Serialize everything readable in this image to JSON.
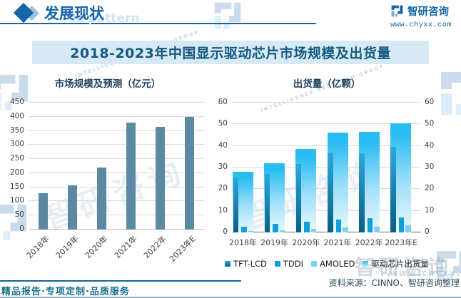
{
  "header": {
    "title": "发展现状",
    "watermark": "se pattern",
    "logo_text": "智研咨询",
    "logo_url": "www.chyxx.com"
  },
  "banner": {
    "title": "2018-2023年中国显示驱动芯片市场规模及出货量"
  },
  "chart_data": [
    {
      "type": "bar",
      "title": "市场规模及预测（亿元）",
      "categories": [
        "2018年",
        "2019年",
        "2020年",
        "2021年",
        "2022年",
        "2023年E"
      ],
      "values": [
        128,
        157,
        219,
        380,
        363,
        400
      ],
      "xlabel": "",
      "ylabel": "亿元",
      "ylim": [
        0,
        450
      ],
      "ytick": 50,
      "grid": true,
      "bar_color": "#5b89a1"
    },
    {
      "type": "bar",
      "title": "出货量（亿颗）",
      "categories": [
        "2018年",
        "2019年",
        "2020年",
        "2021年",
        "2022年",
        "2023年E"
      ],
      "series": [
        {
          "name": "TFT-LCD",
          "role": "front",
          "color_top": "#2ba9da",
          "color_bottom": "#0a5e86",
          "values": [
            25.5,
            27,
            31.5,
            37,
            36.5,
            39.5
          ]
        },
        {
          "name": "TDDI",
          "role": "front",
          "color_top": "#119fdb",
          "color_bottom": "#119fdb",
          "values": [
            2.5,
            4,
            5,
            6,
            6.5,
            7
          ]
        },
        {
          "name": "AMOLED",
          "role": "front",
          "color_top": "#7fd0f2",
          "color_bottom": "#7fd0f2",
          "values": [
            0.5,
            1,
            1.5,
            2.3,
            2.6,
            3.3
          ]
        },
        {
          "name": "驱动芯片出货量",
          "role": "background",
          "color_top": "#29bcf2",
          "color_bottom": "#e9f8fe",
          "values": [
            28,
            32,
            38.5,
            46,
            46.5,
            50.5
          ]
        }
      ],
      "xlabel": "",
      "ylabel": "亿颗",
      "ylim": [
        0,
        60
      ],
      "ytick": 10,
      "grid": true,
      "right_axis": true,
      "legend_position": "bottom"
    }
  ],
  "footer": {
    "tagline": "精品报告·专项定制·品质服务",
    "source": "资料来源：CINNO、智研咨询整理"
  },
  "watermarks": {
    "brand": "智研咨询",
    "group": "INTELLIGENCE RESEARCH GROUP",
    "url": "www.chyxx.com"
  },
  "colors": {
    "accent_blue": "#1565a8",
    "banner_bg": "#d7e9f5",
    "banner_text": "#14597f",
    "grid": "#d9d9d9"
  }
}
